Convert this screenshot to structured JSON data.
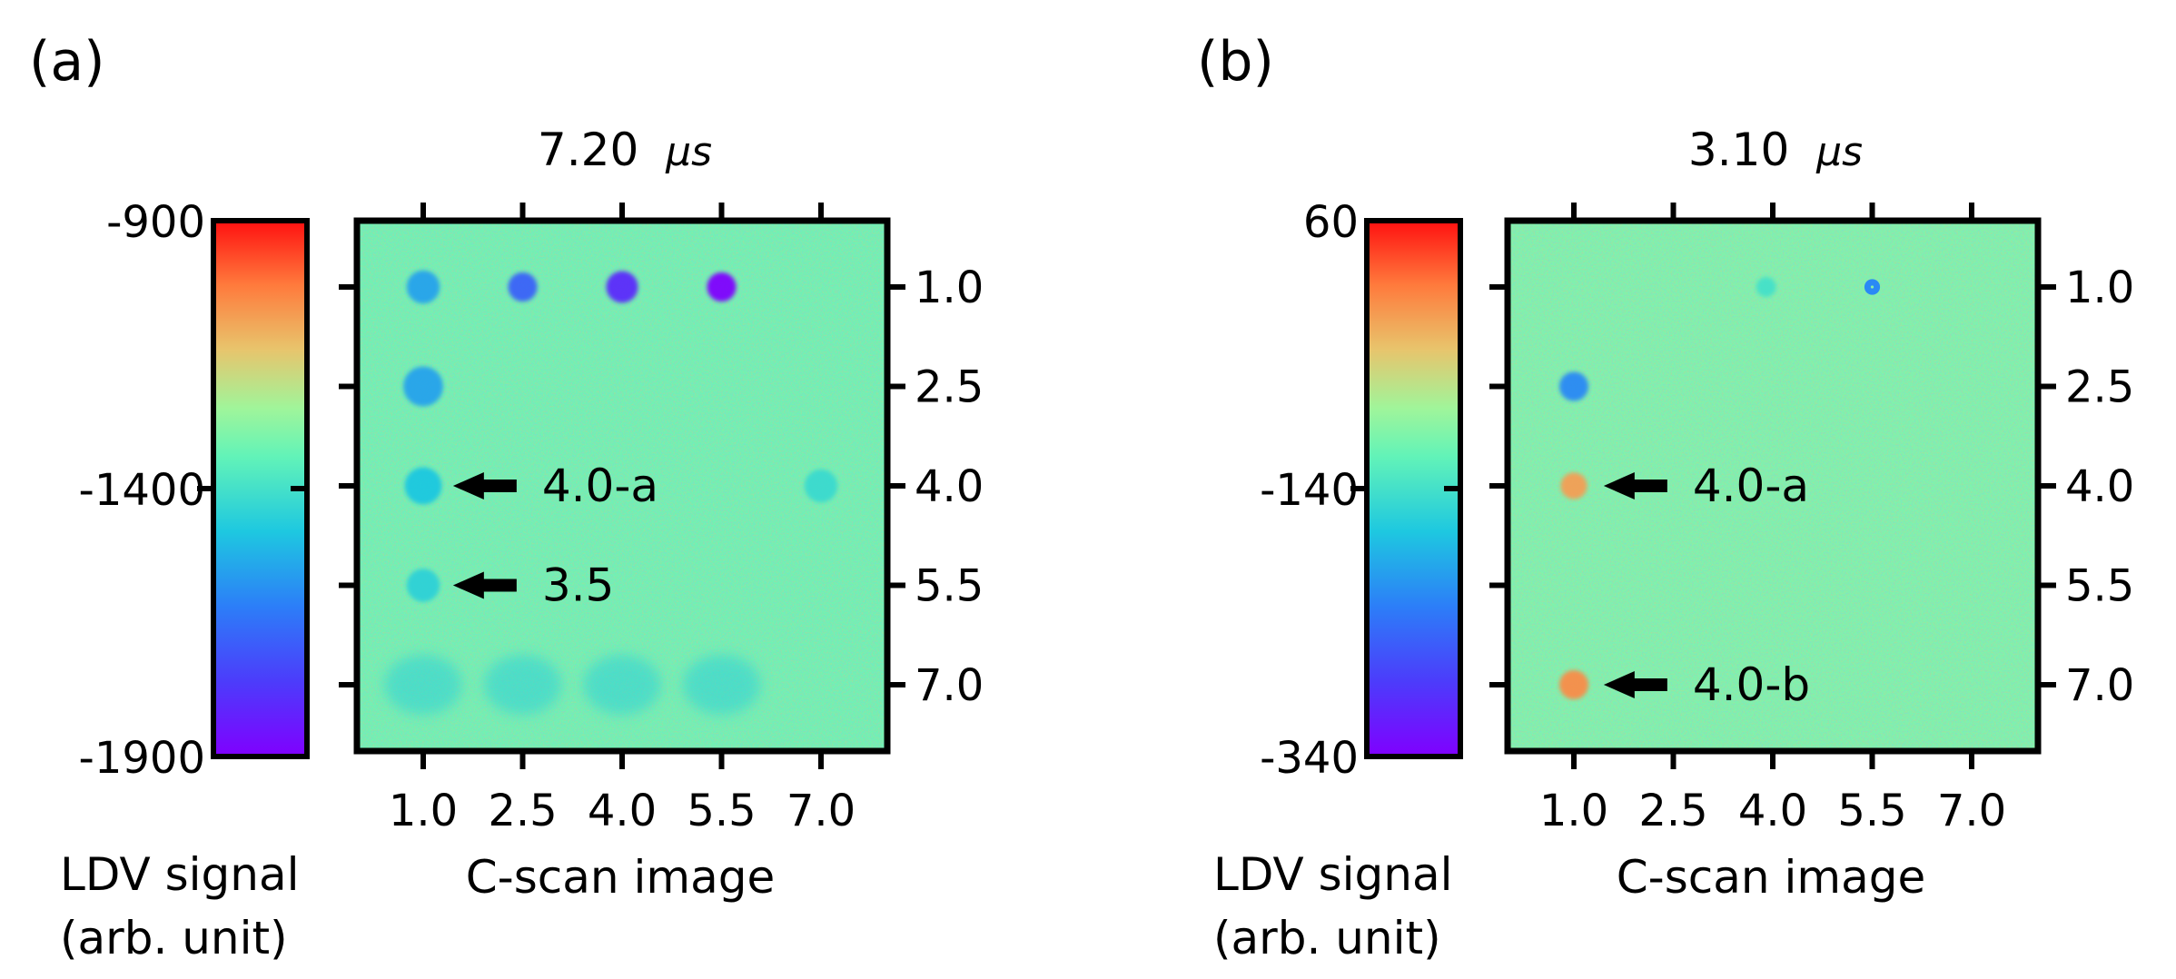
{
  "chart_data": [
    {
      "type": "heatmap",
      "panel_label": "(a)",
      "title_value": "7.20",
      "title_unit": "μs",
      "colorbar": {
        "max_label": "-900",
        "mid_label": "-1400",
        "min_label": "-1900",
        "range": [
          -1900,
          -900
        ],
        "label_lines": [
          "LDV signal",
          "(arb. unit)"
        ]
      },
      "xlabel": "C-scan image",
      "x_ticks": [
        "1.0",
        "2.5",
        "4.0",
        "5.5",
        "7.0"
      ],
      "y_ticks": [
        "1.0",
        "2.5",
        "4.0",
        "5.5",
        "7.0"
      ],
      "axis_extent": [
        0,
        8
      ],
      "tick_positions": [
        1.0,
        2.5,
        4.0,
        5.5,
        7.0
      ],
      "background_value": 0.58,
      "annotations": [
        {
          "text": "4.0-a",
          "x": 1.0,
          "y": 4.0
        },
        {
          "text": "3.5",
          "x": 1.0,
          "y": 5.5
        }
      ],
      "spots": [
        {
          "x": 1.0,
          "y": 1.0,
          "value": 0.35,
          "size": 0.25
        },
        {
          "x": 2.5,
          "y": 1.0,
          "value": 0.22,
          "size": 0.22
        },
        {
          "x": 4.0,
          "y": 1.0,
          "value": 0.1,
          "size": 0.24
        },
        {
          "x": 5.5,
          "y": 1.0,
          "value": 0.0,
          "size": 0.22
        },
        {
          "x": 1.0,
          "y": 2.5,
          "value": 0.35,
          "size": 0.3
        },
        {
          "x": 1.0,
          "y": 4.0,
          "value": 0.42,
          "size": 0.28
        },
        {
          "x": 1.0,
          "y": 5.5,
          "value": 0.45,
          "size": 0.25
        },
        {
          "x": 7.0,
          "y": 4.0,
          "value": 0.48,
          "size": 0.25
        },
        {
          "x": 1.0,
          "y": 7.0,
          "value": 0.45,
          "size": 0.45
        },
        {
          "x": 2.5,
          "y": 7.0,
          "value": 0.45,
          "size": 0.45
        },
        {
          "x": 4.0,
          "y": 7.0,
          "value": 0.45,
          "size": 0.45
        },
        {
          "x": 5.5,
          "y": 7.0,
          "value": 0.45,
          "size": 0.45
        }
      ]
    },
    {
      "type": "heatmap",
      "panel_label": "(b)",
      "title_value": "3.10",
      "title_unit": "μs",
      "colorbar": {
        "max_label": "60",
        "mid_label": "-140",
        "min_label": "-340",
        "range": [
          -340,
          60
        ],
        "label_lines": [
          "LDV signal",
          "(arb. unit)"
        ]
      },
      "xlabel": "C-scan image",
      "x_ticks": [
        "1.0",
        "2.5",
        "4.0",
        "5.5",
        "7.0"
      ],
      "y_ticks": [
        "1.0",
        "2.5",
        "4.0",
        "5.5",
        "7.0"
      ],
      "axis_extent": [
        0,
        8
      ],
      "tick_positions": [
        1.0,
        2.5,
        4.0,
        5.5,
        7.0
      ],
      "background_value": 0.6,
      "annotations": [
        {
          "text": "4.0-a",
          "x": 1.0,
          "y": 4.0
        },
        {
          "text": "4.0-b",
          "x": 1.0,
          "y": 7.0
        }
      ],
      "spots": [
        {
          "x": 1.0,
          "y": 2.5,
          "value": 0.3,
          "size": 0.22
        },
        {
          "x": 1.0,
          "y": 4.0,
          "value": 0.82,
          "size": 0.2
        },
        {
          "x": 1.0,
          "y": 7.0,
          "value": 0.85,
          "size": 0.22
        },
        {
          "x": 3.9,
          "y": 1.0,
          "value": 0.5,
          "size": 0.15
        }
      ],
      "ring": {
        "x": 5.5,
        "y": 1.0,
        "value": 0.3,
        "size": 0.14
      }
    }
  ]
}
